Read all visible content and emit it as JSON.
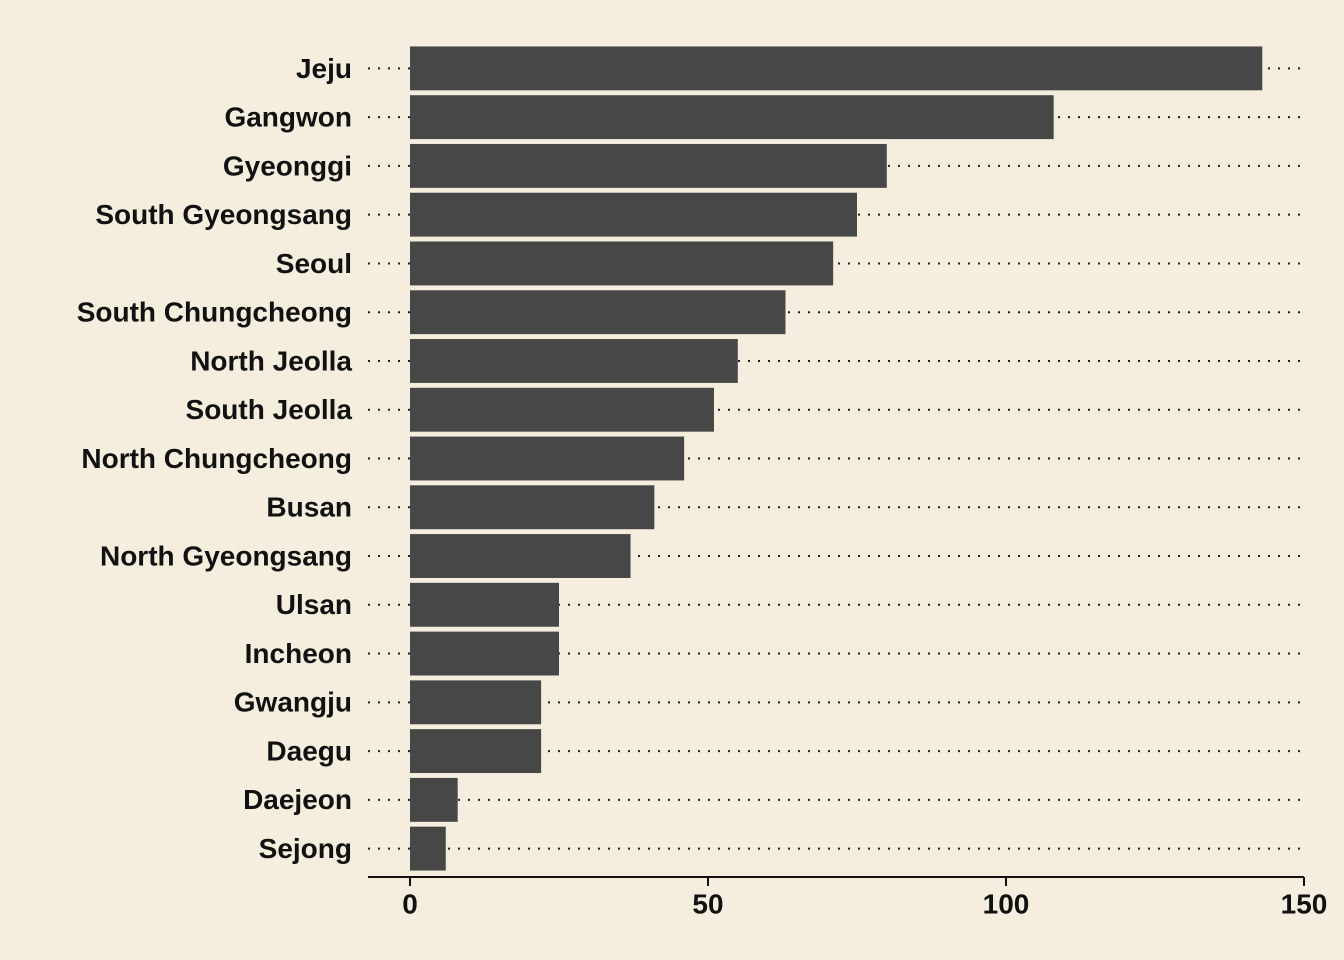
{
  "chart_data": {
    "type": "bar",
    "orientation": "horizontal",
    "categories": [
      "Jeju",
      "Gangwon",
      "Gyeonggi",
      "South Gyeongsang",
      "Seoul",
      "South Chungcheong",
      "North Jeolla",
      "South Jeolla",
      "North Chungcheong",
      "Busan",
      "North Gyeongsang",
      "Ulsan",
      "Incheon",
      "Gwangju",
      "Daegu",
      "Daejeon",
      "Sejong"
    ],
    "values": [
      143,
      108,
      80,
      75,
      71,
      63,
      55,
      51,
      46,
      41,
      37,
      25,
      25,
      22,
      22,
      8,
      6
    ],
    "color": "#474747",
    "xlim": [
      0,
      150
    ],
    "xticks": [
      0,
      50,
      100,
      150
    ]
  }
}
